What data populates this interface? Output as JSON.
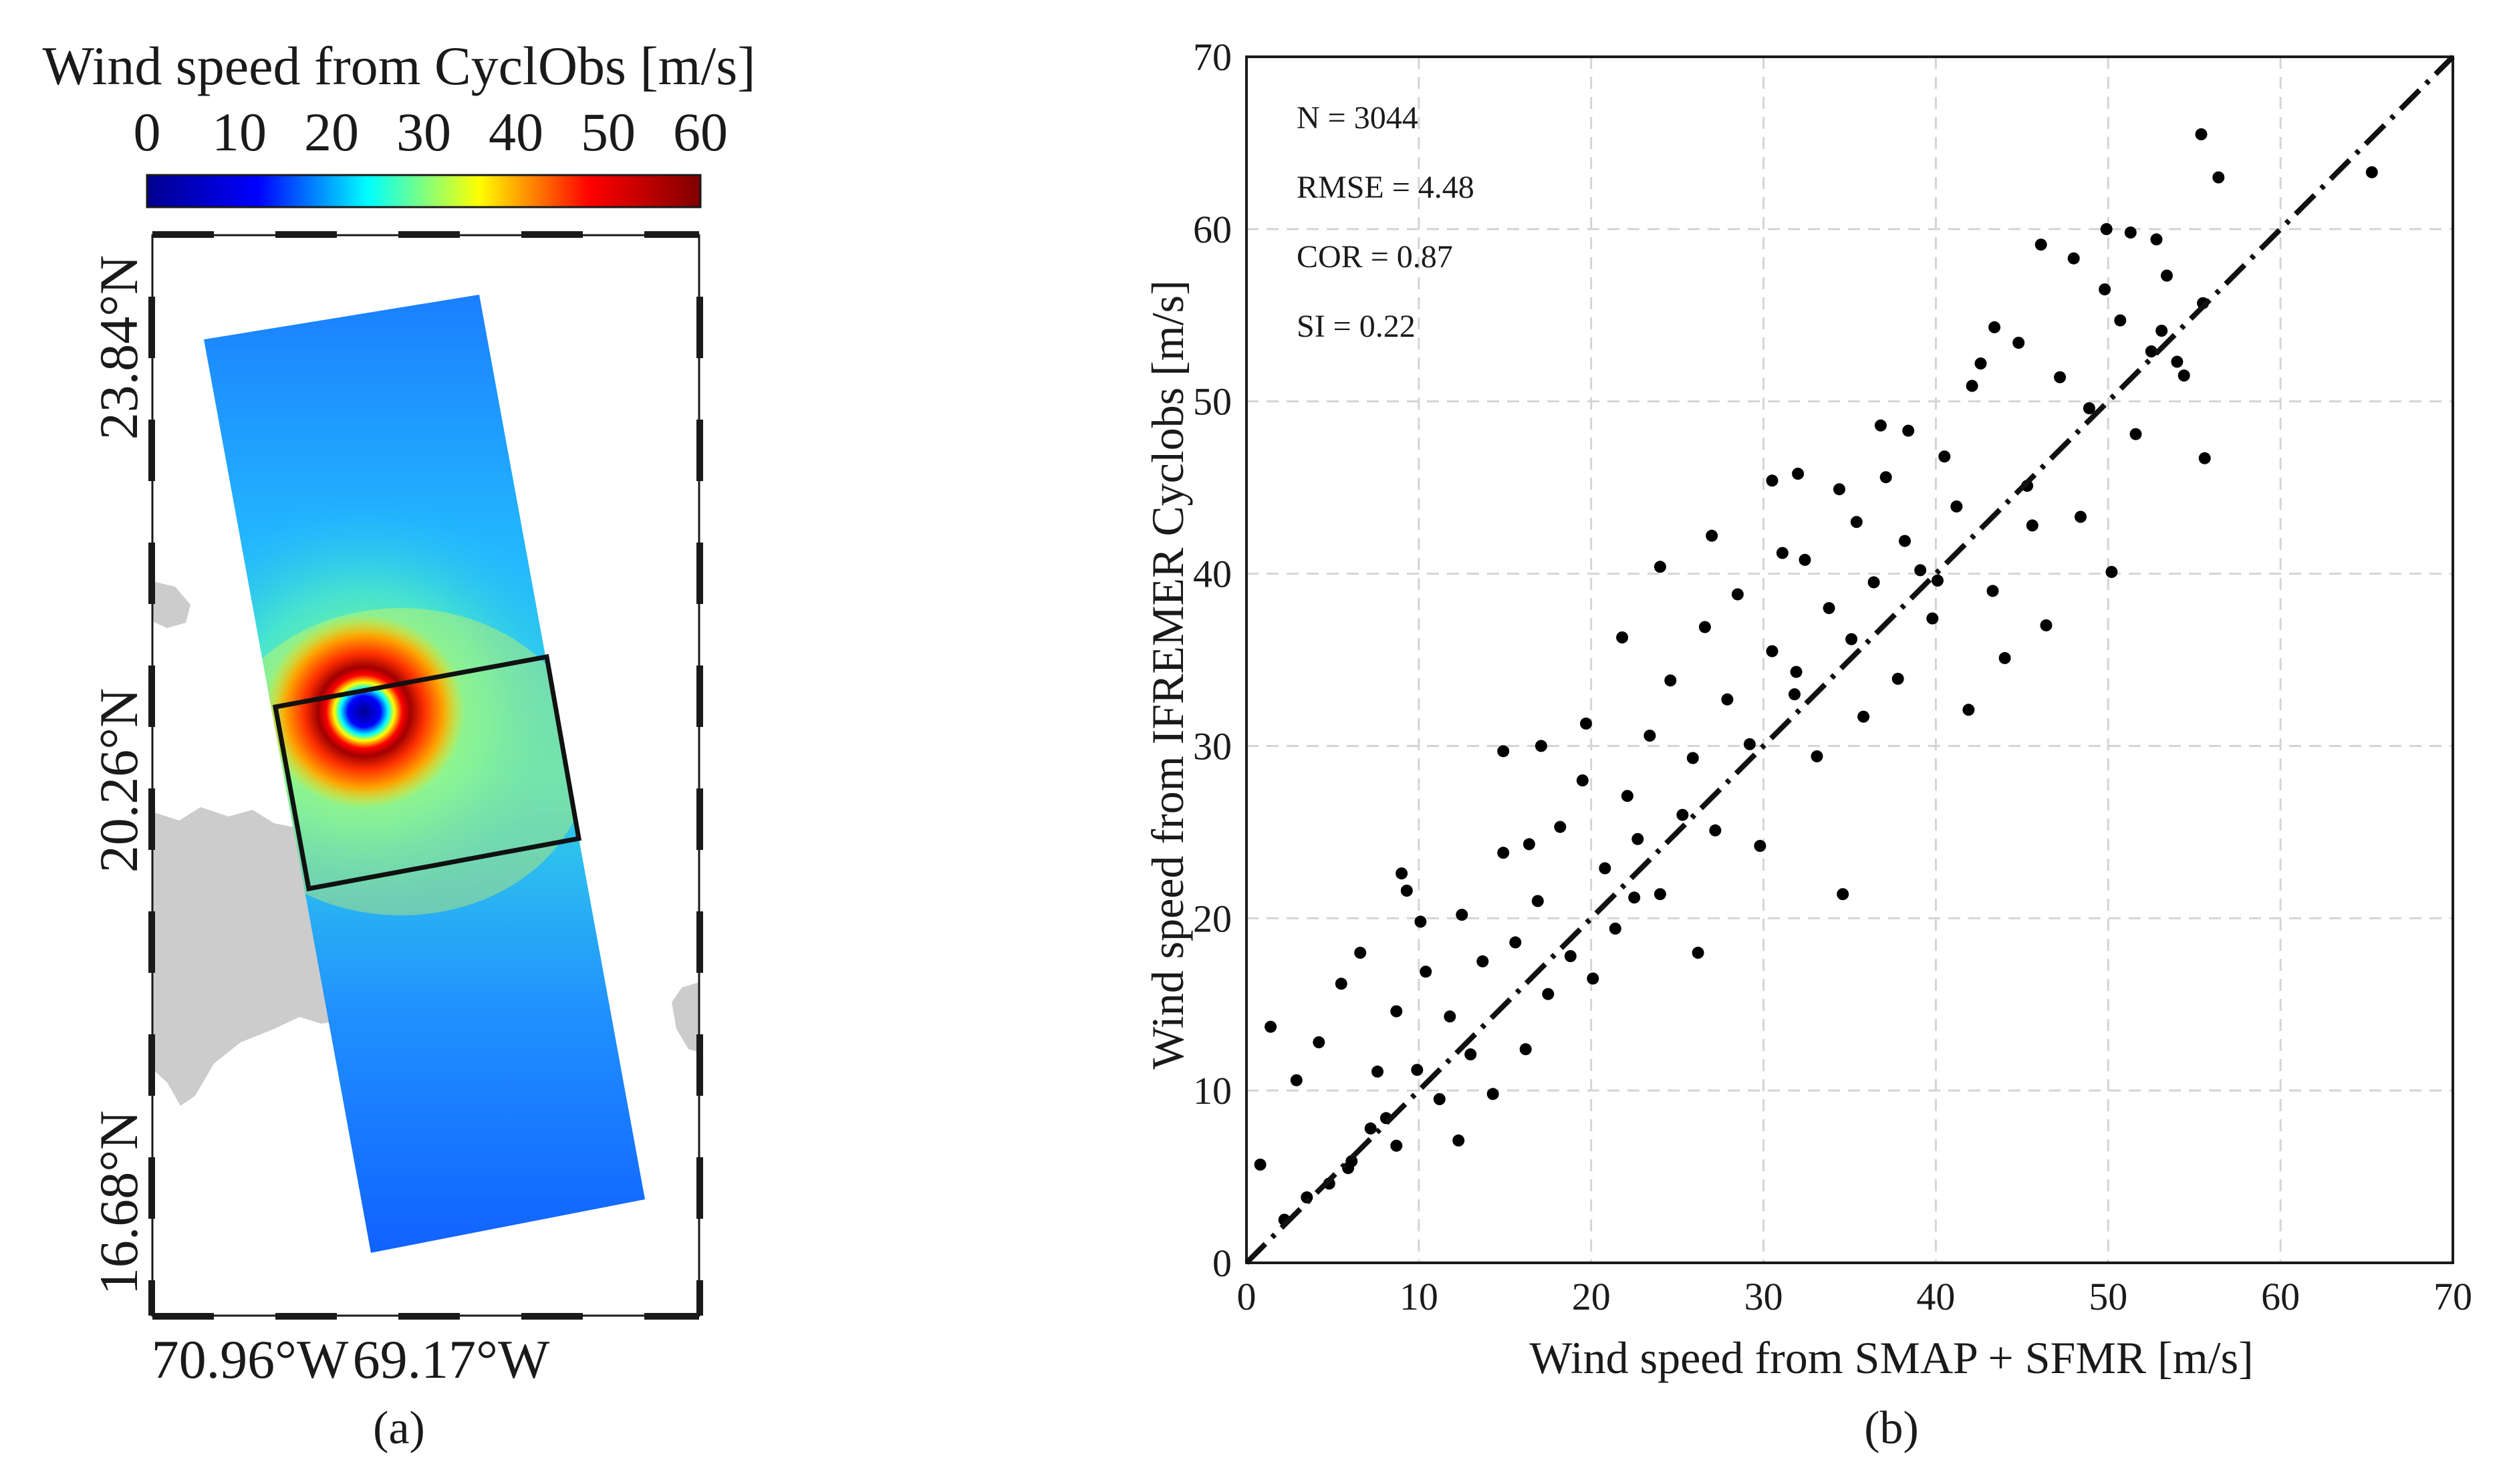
{
  "panel_a": {
    "colorbar_title": "Wind speed from CyclObs [m/s]",
    "colorbar_ticks": [
      "0",
      "10",
      "20",
      "30",
      "40",
      "50",
      "60"
    ],
    "colormap": [
      "#00008f",
      "#0000ff",
      "#00ffff",
      "#ffff00",
      "#ff0000",
      "#800000"
    ],
    "latitude_labels": [
      "23.84°N",
      "20.26°N",
      "16.68°N"
    ],
    "longitude_labels": [
      "70.96°W",
      "69.17°W"
    ],
    "land_color": "#cccccc",
    "panel_label": "(a)"
  },
  "panel_b": {
    "panel_label": "(b)",
    "stats": [
      "N = 3044",
      "RMSE = 4.48",
      "COR = 0.87",
      "SI = 0.22"
    ]
  },
  "chart_data": [
    {
      "type": "heatmap",
      "colorbar_title": "Wind speed from CyclObs [m/s]",
      "colorbar_range": [
        0,
        60
      ],
      "colorbar_ticks": [
        0,
        10,
        20,
        30,
        40,
        50,
        60
      ],
      "lat_ticks": [
        "23.84°N",
        "20.26°N",
        "16.68°N"
      ],
      "lon_ticks": [
        "70.96°W",
        "69.17°W"
      ]
    },
    {
      "type": "scatter",
      "xlabel": "Wind speed from SMAP + SFMR [m/s]",
      "ylabel": "Wind speed from IFREMER Cyclobs [m/s]",
      "xlim": [
        0,
        70
      ],
      "ylim": [
        0,
        70
      ],
      "xticks": [
        0,
        10,
        20,
        30,
        40,
        50,
        60,
        70
      ],
      "yticks": [
        0,
        10,
        20,
        30,
        40,
        50,
        60,
        70
      ],
      "grid": true,
      "reference_line": {
        "style": "dash-dot",
        "x": [
          0,
          70
        ],
        "y": [
          0,
          70
        ]
      },
      "stats": {
        "N": 3044,
        "RMSE": 4.48,
        "COR": 0.87,
        "SI": 0.22
      },
      "series": [
        {
          "x": [
            0.8,
            1.4,
            2.2,
            2.9,
            3.5,
            4.2,
            4.8,
            5.5,
            6.1,
            6.6,
            7.2,
            7.6,
            8.1,
            8.7,
            9.3,
            9.9,
            10.4,
            11.2,
            11.8,
            12.5,
            13.0,
            13.7,
            14.3,
            14.9,
            15.6,
            16.2,
            16.9,
            17.5,
            18.2,
            18.8,
            19.5,
            20.1,
            20.8,
            21.4,
            22.1,
            22.7,
            23.4,
            24.0,
            24.6,
            25.3,
            25.9,
            26.6,
            27.2,
            27.9,
            28.5,
            29.2,
            29.8,
            30.5,
            31.1,
            31.8,
            32.4,
            33.1,
            33.8,
            34.4,
            35.1,
            35.8,
            36.4,
            37.1,
            37.8,
            38.4,
            39.1,
            39.8,
            40.5,
            41.2,
            41.9,
            42.6,
            43.3,
            44.0,
            44.8,
            45.6,
            46.4,
            47.2,
            48.0,
            48.9,
            49.8,
            50.7,
            51.6,
            52.5,
            53.4,
            54.4,
            55.5,
            56.4,
            65.3,
            55.4,
            53.1,
            49.9,
            51.3,
            46.1,
            55.6,
            50.2,
            42.1,
            43.4,
            36.8,
            35.4,
            32.0,
            24.0,
            22.5,
            12.3,
            8.7,
            5.9,
            9.0,
            10.1,
            14.9,
            17.1,
            16.4,
            19.7,
            21.8,
            26.2,
            27.0,
            30.5,
            31.9,
            34.6,
            38.2,
            40.1,
            45.3,
            48.4,
            52.8,
            54.0
          ],
          "y": [
            5.7,
            13.7,
            2.5,
            10.6,
            3.8,
            12.8,
            4.6,
            16.2,
            5.9,
            18.0,
            7.8,
            11.1,
            8.4,
            14.6,
            21.6,
            11.2,
            16.9,
            9.5,
            14.3,
            20.2,
            12.1,
            17.5,
            9.8,
            23.8,
            18.6,
            12.4,
            21.0,
            15.6,
            25.3,
            17.8,
            28.0,
            16.5,
            22.9,
            19.4,
            27.1,
            24.6,
            30.6,
            21.4,
            33.8,
            26.0,
            29.3,
            36.9,
            25.1,
            32.7,
            38.8,
            30.1,
            24.2,
            35.5,
            41.2,
            33.0,
            40.8,
            29.4,
            38.0,
            44.9,
            36.2,
            31.7,
            39.5,
            45.6,
            33.9,
            48.3,
            40.2,
            37.4,
            46.8,
            43.9,
            32.1,
            52.2,
            39.0,
            35.1,
            53.4,
            42.8,
            37.0,
            51.4,
            58.3,
            49.6,
            56.5,
            54.7,
            48.1,
            52.9,
            57.3,
            51.5,
            55.7,
            63.0,
            63.3,
            65.5,
            54.1,
            60.0,
            59.8,
            59.1,
            46.7,
            40.1,
            50.9,
            54.3,
            48.6,
            43.0,
            45.8,
            40.4,
            21.2,
            7.1,
            6.8,
            5.5,
            22.6,
            19.8,
            29.7,
            30.0,
            24.3,
            31.3,
            36.3,
            18.0,
            42.2,
            45.4,
            34.3,
            21.4,
            41.9,
            39.6,
            45.1,
            43.3,
            59.4,
            52.3
          ]
        }
      ]
    }
  ]
}
